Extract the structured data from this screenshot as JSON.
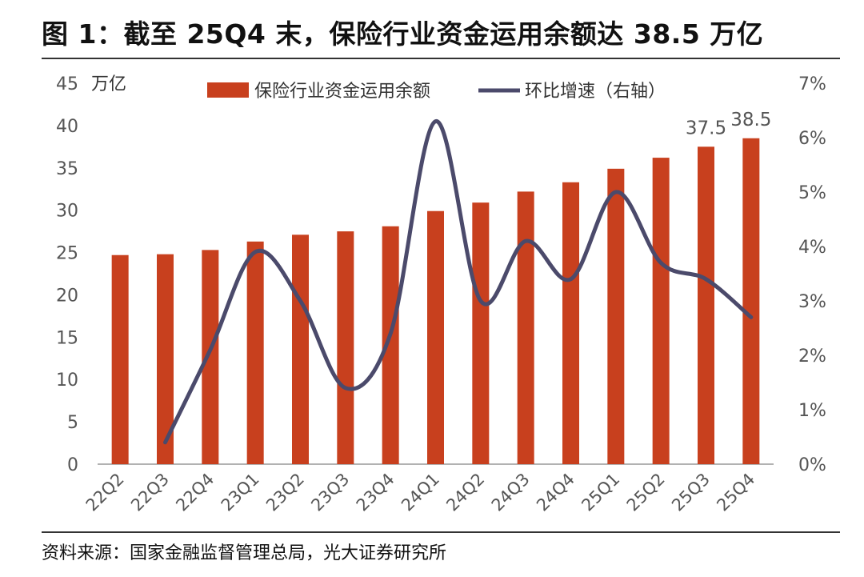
{
  "title": "图 1：截至 25Q4 末，保险行业资金运用余额达 38.5 万亿",
  "source": "资料来源：国家金融监督管理总局，光大证券研究所",
  "colors": {
    "bar": "#C8401E",
    "line": "#4B4A6B",
    "axis": "#999999",
    "text": "#555555"
  },
  "chart_data": {
    "type": "bar",
    "categories": [
      "22Q2",
      "22Q3",
      "22Q4",
      "23Q1",
      "23Q2",
      "23Q3",
      "23Q4",
      "24Q1",
      "24Q2",
      "24Q3",
      "24Q4",
      "25Q1",
      "25Q2",
      "25Q3",
      "25Q4"
    ],
    "y_unit": "万亿",
    "ylim": [
      0,
      45
    ],
    "yticks": [
      "0",
      "5",
      "10",
      "15",
      "20",
      "25",
      "30",
      "35",
      "40",
      "45"
    ],
    "y2lim": [
      0,
      7
    ],
    "y2ticks": [
      "0%",
      "1%",
      "2%",
      "3%",
      "4%",
      "5%",
      "6%",
      "7%"
    ],
    "legend_position": "top",
    "series": [
      {
        "name": "保险行业资金运用余额",
        "type": "bar",
        "axis": "left",
        "values": [
          24.7,
          24.8,
          25.3,
          26.3,
          27.1,
          27.5,
          28.1,
          29.9,
          30.9,
          32.2,
          33.3,
          34.9,
          36.2,
          37.5,
          38.5
        ],
        "data_labels": {
          "25Q3": "37.5",
          "25Q4": "38.5"
        }
      },
      {
        "name": "环比增速（右轴）",
        "type": "line",
        "axis": "right",
        "smooth": true,
        "values": [
          null,
          0.4,
          2.1,
          3.9,
          3.0,
          1.4,
          2.4,
          6.3,
          3.0,
          4.1,
          3.4,
          5.0,
          3.7,
          3.4,
          2.7
        ]
      }
    ]
  }
}
